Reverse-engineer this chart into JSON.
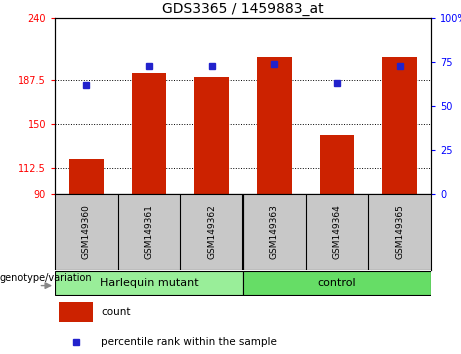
{
  "title": "GDS3365 / 1459883_at",
  "samples": [
    "GSM149360",
    "GSM149361",
    "GSM149362",
    "GSM149363",
    "GSM149364",
    "GSM149365"
  ],
  "bar_values": [
    120,
    193,
    190,
    207,
    140,
    207
  ],
  "percentile_values": [
    62,
    73,
    73,
    74,
    63,
    73
  ],
  "y_min": 90,
  "y_max": 240,
  "y_ticks_left": [
    90,
    112.5,
    150,
    187.5,
    240
  ],
  "y_tick_labels_left": [
    "90",
    "112.5",
    "150",
    "187.5",
    "240"
  ],
  "y_ticks_right": [
    0,
    25,
    50,
    75,
    100
  ],
  "y_tick_labels_right": [
    "0",
    "25",
    "50",
    "75",
    "100%"
  ],
  "bar_color": "#cc2200",
  "dot_color": "#2222cc",
  "group_labels": [
    "Harlequin mutant",
    "control"
  ],
  "group_colors": [
    "#99ee99",
    "#66dd66"
  ],
  "group_label": "genotype/variation",
  "legend_count_label": "count",
  "legend_percentile_label": "percentile rank within the sample",
  "xlabel_bg": "#c8c8c8",
  "title_fontsize": 10,
  "tick_fontsize": 7,
  "sample_fontsize": 6.5,
  "group_fontsize": 8,
  "legend_fontsize": 7.5
}
